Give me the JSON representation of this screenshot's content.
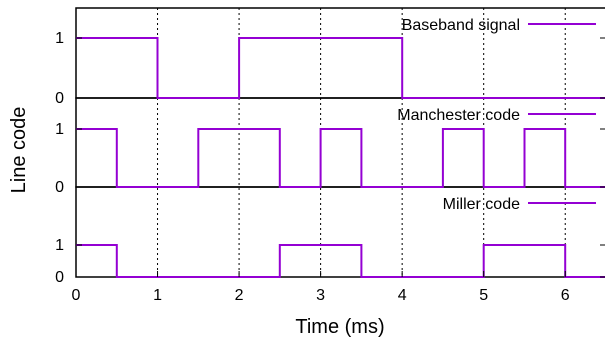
{
  "chart_data": {
    "type": "line",
    "xlabel": "Time (ms)",
    "ylabel": "Line code",
    "xlim": [
      0,
      6.5
    ],
    "ylim": [
      0,
      1
    ],
    "x_ticks": [
      "0",
      "1",
      "2",
      "3",
      "4",
      "5",
      "6"
    ],
    "y_ticks": [
      "0",
      "1"
    ],
    "grid": "vertical dotted lines at x ticks",
    "series_color": "#9400d3",
    "panels": [
      {
        "name": "Baseband signal",
        "legend_position": "top-right",
        "x": [
          0,
          1,
          1,
          2,
          2,
          4,
          4,
          6.5
        ],
        "y": [
          1,
          1,
          0,
          0,
          1,
          1,
          0,
          0
        ]
      },
      {
        "name": "Manchester code",
        "legend_position": "top-right",
        "x": [
          0,
          0.5,
          0.5,
          1.5,
          1.5,
          2.5,
          2.5,
          3,
          3,
          3.5,
          3.5,
          4.5,
          4.5,
          5,
          5,
          5.5,
          5.5,
          6,
          6,
          6.5
        ],
        "y": [
          1,
          1,
          0,
          0,
          1,
          1,
          0,
          0,
          1,
          1,
          0,
          0,
          1,
          1,
          0,
          0,
          1,
          1,
          0,
          0
        ]
      },
      {
        "name": "Miller code",
        "legend_position": "top-right",
        "x": [
          0,
          0.5,
          0.5,
          2.5,
          2.5,
          3.5,
          3.5,
          5,
          5,
          6,
          6,
          6.5
        ],
        "y": [
          1,
          1,
          0,
          0,
          1,
          1,
          0,
          0,
          1,
          1,
          0,
          0
        ]
      }
    ]
  }
}
